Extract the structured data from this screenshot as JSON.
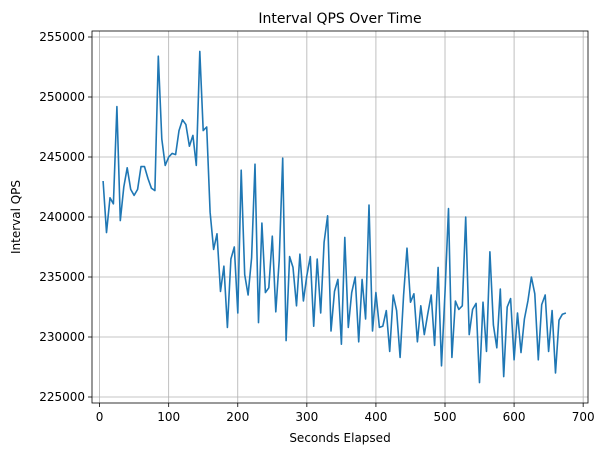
{
  "chart_data": {
    "type": "line",
    "title": "Interval QPS Over Time",
    "xlabel": "Seconds Elapsed",
    "ylabel": "Interval QPS",
    "xlim": [
      -11,
      707
    ],
    "ylim": [
      224500,
      255500
    ],
    "xticks": [
      0,
      100,
      200,
      300,
      400,
      500,
      600,
      700
    ],
    "yticks": [
      225000,
      230000,
      235000,
      240000,
      245000,
      250000,
      255000
    ],
    "grid": true,
    "line_color": "#1f77b4",
    "series": [
      {
        "x": [
          5,
          10,
          15,
          20,
          25,
          30,
          35,
          40,
          45,
          50,
          55,
          60,
          65,
          70,
          75,
          80,
          85,
          90,
          95,
          100,
          105,
          110,
          115,
          120,
          125,
          130,
          135,
          140,
          145,
          150,
          155,
          160,
          165,
          170,
          175,
          180,
          185,
          190,
          195,
          200,
          205,
          210,
          215,
          220,
          225,
          230,
          235,
          240,
          245,
          250,
          255,
          260,
          265,
          270,
          275,
          280,
          285,
          290,
          295,
          300,
          305,
          310,
          315,
          320,
          325,
          330,
          335,
          340,
          345,
          350,
          355,
          360,
          365,
          370,
          375,
          380,
          385,
          390,
          395,
          400,
          405,
          410,
          415,
          420,
          425,
          430,
          435,
          440,
          445,
          450,
          455,
          460,
          465,
          470,
          475,
          480,
          485,
          490,
          495,
          500,
          505,
          510,
          515,
          520,
          525,
          530,
          535,
          540,
          545,
          550,
          555,
          560,
          565,
          570,
          575,
          580,
          585,
          590,
          595,
          600,
          605,
          610,
          615,
          620,
          625,
          630,
          635,
          640,
          645,
          650,
          655,
          660,
          665,
          670,
          675
        ],
        "values": [
          243000,
          238700,
          241600,
          241100,
          249200,
          239700,
          242500,
          244100,
          242300,
          241800,
          242300,
          244200,
          244200,
          243200,
          242400,
          242200,
          253400,
          246500,
          244300,
          245000,
          245300,
          245200,
          247200,
          248100,
          247700,
          245900,
          246800,
          244300,
          253800,
          247200,
          247500,
          240400,
          237300,
          238600,
          233800,
          235900,
          230800,
          236500,
          237500,
          232000,
          243900,
          235200,
          233500,
          236600,
          244400,
          231200,
          239500,
          233700,
          234100,
          238400,
          232100,
          236400,
          244900,
          229700,
          236700,
          235800,
          232600,
          236900,
          233000,
          235100,
          236700,
          230900,
          236500,
          232000,
          237900,
          240100,
          230500,
          233800,
          234800,
          229400,
          238300,
          230800,
          233700,
          235000,
          229600,
          234800,
          231500,
          241000,
          230500,
          233700,
          230800,
          230900,
          232200,
          228800,
          233500,
          232200,
          228300,
          233500,
          237400,
          232900,
          233600,
          229600,
          232600,
          230200,
          231900,
          233500,
          229300,
          235800,
          227600,
          233700,
          240700,
          228300,
          233000,
          232300,
          232600,
          240000,
          230200,
          232300,
          232800,
          226200,
          232900,
          228800,
          237100,
          231000,
          229100,
          234000,
          226700,
          232500,
          233200,
          228100,
          232000,
          228700,
          231500,
          233000,
          235000,
          233600,
          228100,
          232700,
          233500,
          228800,
          232200,
          227000,
          231400,
          231900,
          232000
        ]
      }
    ]
  }
}
